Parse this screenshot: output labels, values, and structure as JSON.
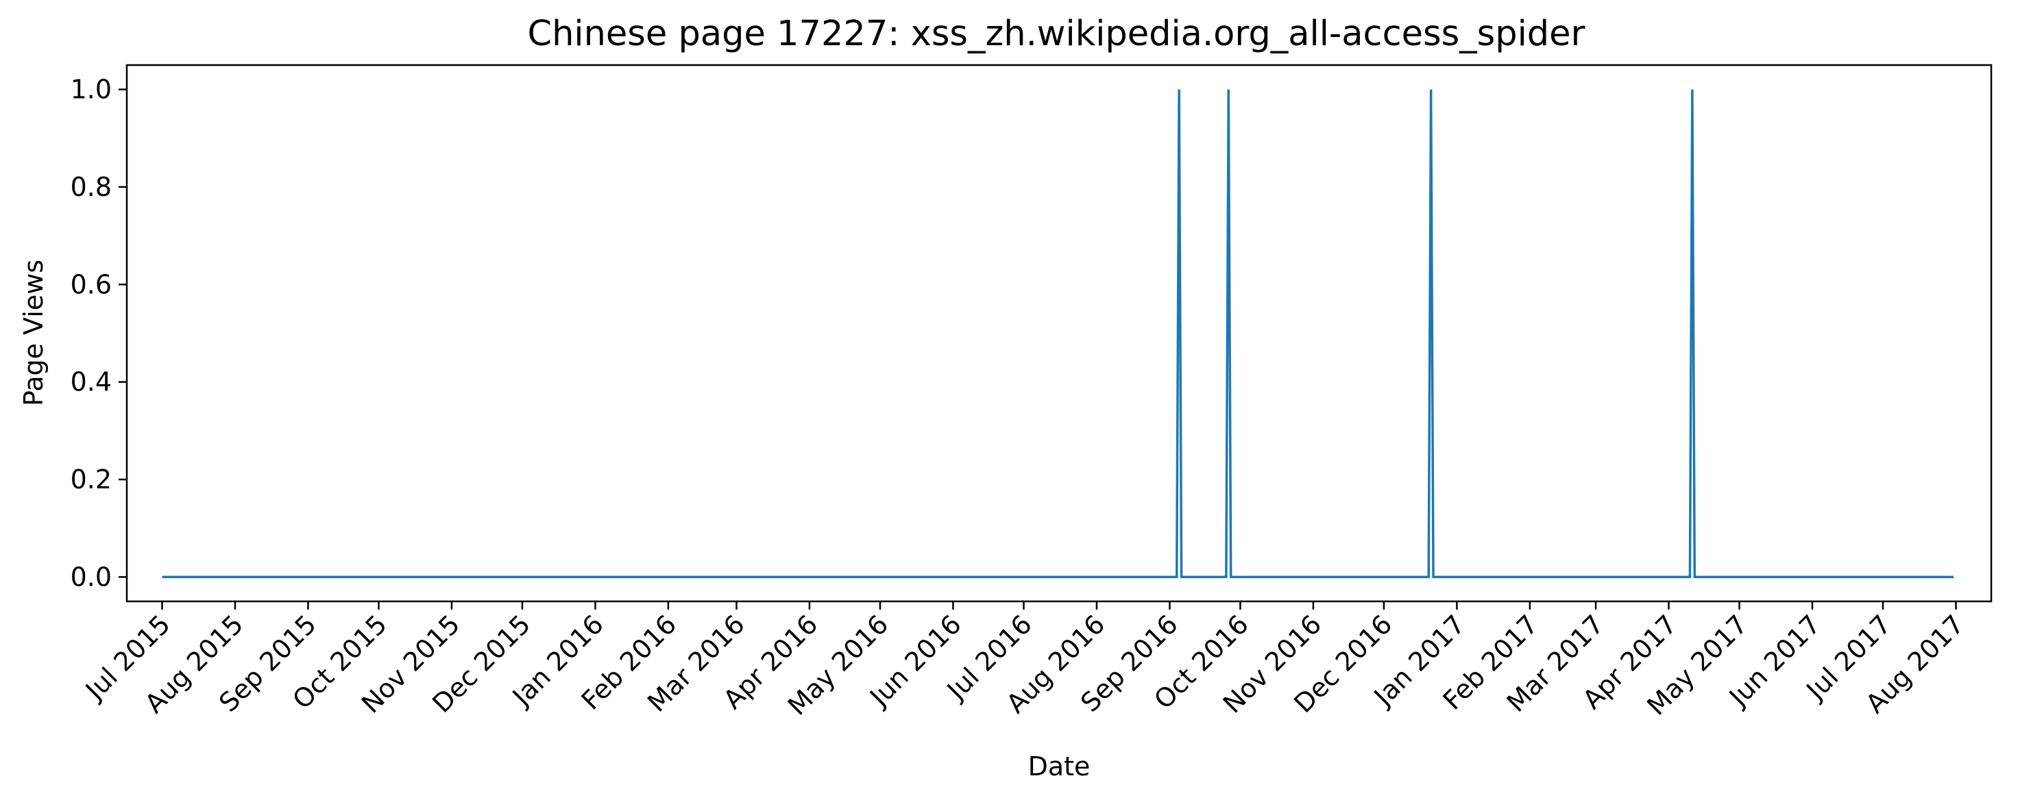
{
  "chart_data": {
    "type": "line",
    "title": "Chinese page 17227: xss_zh.wikipedia.org_all-access_spider",
    "xlabel": "Date",
    "ylabel": "Page Views",
    "xlim": [
      "2015-06-16",
      "2017-08-16"
    ],
    "ylim": [
      -0.05,
      1.05
    ],
    "grid": false,
    "x_ticks": [
      {
        "date": "2015-07-01",
        "label": "Jul 2015"
      },
      {
        "date": "2015-08-01",
        "label": "Aug 2015"
      },
      {
        "date": "2015-09-01",
        "label": "Sep 2015"
      },
      {
        "date": "2015-10-01",
        "label": "Oct 2015"
      },
      {
        "date": "2015-11-01",
        "label": "Nov 2015"
      },
      {
        "date": "2015-12-01",
        "label": "Dec 2015"
      },
      {
        "date": "2016-01-01",
        "label": "Jan 2016"
      },
      {
        "date": "2016-02-01",
        "label": "Feb 2016"
      },
      {
        "date": "2016-03-01",
        "label": "Mar 2016"
      },
      {
        "date": "2016-04-01",
        "label": "Apr 2016"
      },
      {
        "date": "2016-05-01",
        "label": "May 2016"
      },
      {
        "date": "2016-06-01",
        "label": "Jun 2016"
      },
      {
        "date": "2016-07-01",
        "label": "Jul 2016"
      },
      {
        "date": "2016-08-01",
        "label": "Aug 2016"
      },
      {
        "date": "2016-09-01",
        "label": "Sep 2016"
      },
      {
        "date": "2016-10-01",
        "label": "Oct 2016"
      },
      {
        "date": "2016-11-01",
        "label": "Nov 2016"
      },
      {
        "date": "2016-12-01",
        "label": "Dec 2016"
      },
      {
        "date": "2017-01-01",
        "label": "Jan 2017"
      },
      {
        "date": "2017-02-01",
        "label": "Feb 2017"
      },
      {
        "date": "2017-03-01",
        "label": "Mar 2017"
      },
      {
        "date": "2017-04-01",
        "label": "Apr 2017"
      },
      {
        "date": "2017-05-01",
        "label": "May 2017"
      },
      {
        "date": "2017-06-01",
        "label": "Jun 2017"
      },
      {
        "date": "2017-07-01",
        "label": "Jul 2017"
      },
      {
        "date": "2017-08-01",
        "label": "Aug 2017"
      }
    ],
    "y_ticks": [
      {
        "value": 0.0,
        "label": "0.0"
      },
      {
        "value": 0.2,
        "label": "0.2"
      },
      {
        "value": 0.4,
        "label": "0.4"
      },
      {
        "value": 0.6,
        "label": "0.6"
      },
      {
        "value": 0.8,
        "label": "0.8"
      },
      {
        "value": 1.0,
        "label": "1.0"
      }
    ],
    "series": [
      {
        "color": "#1f77b4",
        "points": [
          {
            "x": "2015-07-01",
            "y": 0
          },
          {
            "x": "2016-09-04",
            "y": 0
          },
          {
            "x": "2016-09-05",
            "y": 1
          },
          {
            "x": "2016-09-06",
            "y": 0
          },
          {
            "x": "2016-09-25",
            "y": 0
          },
          {
            "x": "2016-09-26",
            "y": 1
          },
          {
            "x": "2016-09-27",
            "y": 0
          },
          {
            "x": "2016-12-20",
            "y": 0
          },
          {
            "x": "2016-12-21",
            "y": 1
          },
          {
            "x": "2016-12-22",
            "y": 0
          },
          {
            "x": "2017-04-10",
            "y": 0
          },
          {
            "x": "2017-04-11",
            "y": 1
          },
          {
            "x": "2017-04-12",
            "y": 0
          },
          {
            "x": "2017-07-31",
            "y": 0
          }
        ]
      }
    ]
  }
}
